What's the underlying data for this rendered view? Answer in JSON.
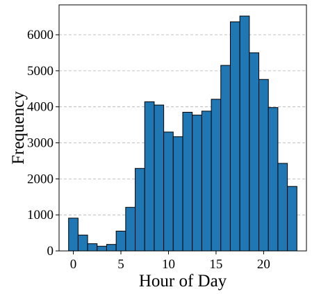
{
  "chart_data": {
    "type": "bar",
    "title": "",
    "xlabel": "Hour of Day",
    "ylabel": "Frequency",
    "categories": [
      0,
      1,
      2,
      3,
      4,
      5,
      6,
      7,
      8,
      9,
      10,
      11,
      12,
      13,
      14,
      15,
      16,
      17,
      18,
      19,
      20,
      21,
      22,
      23
    ],
    "values": [
      910,
      440,
      200,
      130,
      180,
      550,
      1210,
      2290,
      4140,
      4050,
      3300,
      3170,
      3850,
      3770,
      3880,
      4210,
      5150,
      6360,
      6520,
      5500,
      4760,
      3980,
      2430,
      1790
    ],
    "xlim": [
      -1.5,
      24.5
    ],
    "ylim": [
      0,
      6830
    ],
    "xticks": [
      0,
      5,
      10,
      15,
      20
    ],
    "xtick_labels": [
      "0",
      "5",
      "10",
      "15",
      "20"
    ],
    "yticks": [
      0,
      1000,
      2000,
      3000,
      4000,
      5000,
      6000
    ],
    "ytick_labels": [
      "0",
      "1000",
      "2000",
      "3000",
      "4000",
      "5000",
      "6000"
    ],
    "grid": {
      "y": true,
      "x": false,
      "style": "dashed"
    },
    "bar_color": "#1f77b4",
    "edge_color": "#000000",
    "legend": "none"
  }
}
